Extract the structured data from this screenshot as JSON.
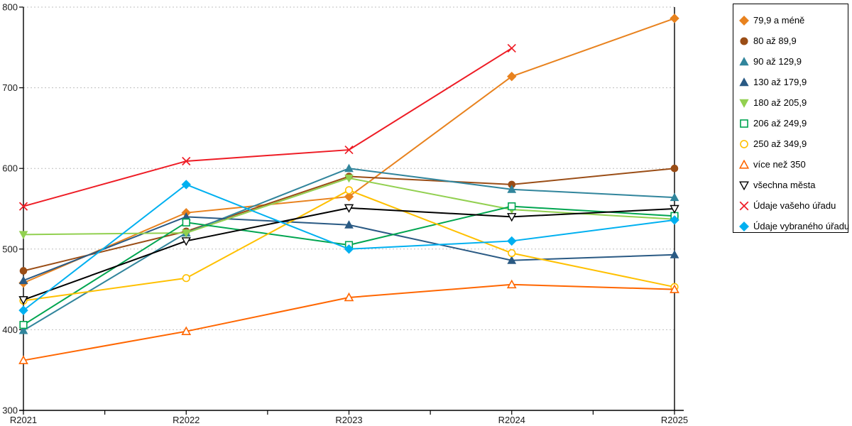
{
  "chart_data": {
    "type": "line",
    "title": "",
    "xlabel": "",
    "ylabel": "",
    "categories": [
      "R2021",
      "R2022",
      "R2023",
      "R2024",
      "R2025"
    ],
    "ylim": [
      300,
      800
    ],
    "yticks": [
      300,
      400,
      500,
      600,
      700,
      800
    ],
    "grid": true,
    "grid_color": "#BFBFBF",
    "axis_color": "#000000",
    "legend_position": "outside-top-right",
    "series": [
      {
        "name": "79,9 a méně",
        "color": "#E8821E",
        "marker": "diamond",
        "filled": true,
        "values": [
          458,
          545,
          565,
          714,
          786
        ]
      },
      {
        "name": "80 až 89,9",
        "color": "#9A4D16",
        "marker": "circle",
        "filled": true,
        "values": [
          473,
          522,
          590,
          580,
          600
        ]
      },
      {
        "name": "90 až 129,9",
        "color": "#31859C",
        "marker": "triangle-up",
        "filled": true,
        "values": [
          399,
          520,
          600,
          574,
          564
        ]
      },
      {
        "name": "130 až 179,9",
        "color": "#2A5A84",
        "marker": "triangle-up",
        "filled": true,
        "values": [
          461,
          540,
          530,
          486,
          493
        ]
      },
      {
        "name": "180 až 205,9",
        "color": "#92D050",
        "marker": "triangle-down",
        "filled": true,
        "values": [
          518,
          520,
          588,
          549,
          537
        ]
      },
      {
        "name": "206 až 249,9",
        "color": "#00A550",
        "marker": "square",
        "filled": false,
        "values": [
          406,
          533,
          505,
          553,
          541
        ]
      },
      {
        "name": "250 až 349,9",
        "color": "#FFC000",
        "marker": "circle",
        "filled": false,
        "values": [
          436,
          464,
          573,
          495,
          453
        ]
      },
      {
        "name": "více než 350",
        "color": "#FF6600",
        "marker": "triangle-up",
        "filled": false,
        "values": [
          362,
          398,
          440,
          456,
          450
        ]
      },
      {
        "name": "všechna města",
        "color": "#000000",
        "marker": "triangle-down",
        "filled": false,
        "values": [
          437,
          510,
          551,
          540,
          550
        ]
      },
      {
        "name": "Údaje vašeho úřadu",
        "color": "#EE1C25",
        "marker": "x",
        "filled": false,
        "values": [
          553,
          609,
          623,
          749,
          null
        ]
      },
      {
        "name": "Údaje vybraného úřadu",
        "color": "#00B0F0",
        "marker": "diamond",
        "filled": true,
        "values": [
          424,
          580,
          500,
          510,
          536
        ]
      }
    ]
  }
}
